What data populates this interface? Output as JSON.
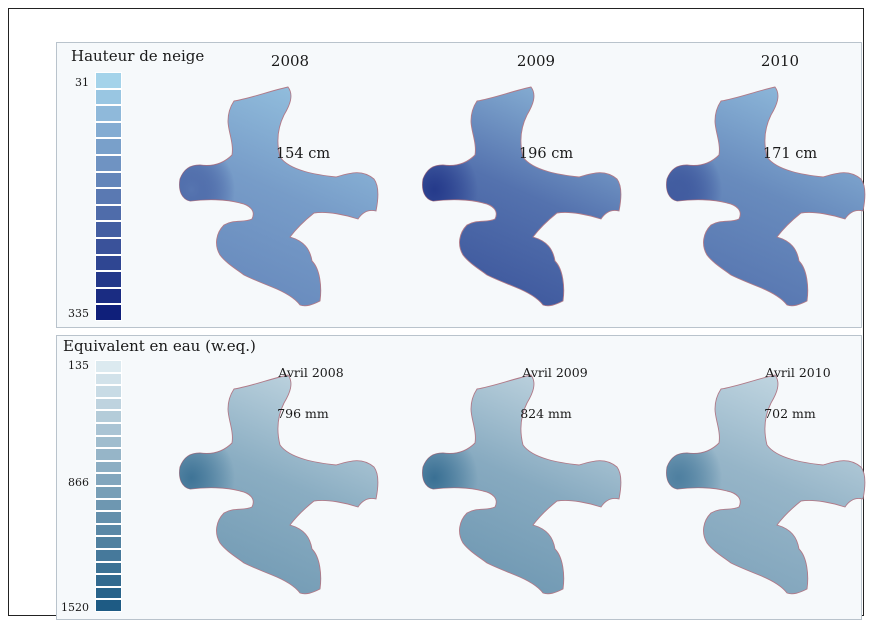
{
  "snow_depth": {
    "title": "Hauteur de neige",
    "legend": {
      "min_label": "31",
      "max_label": "335",
      "min_value": 31,
      "max_value": 335,
      "swatch_count": 15,
      "color_low": "#a4d3ea",
      "color_high": "#0f1f7a"
    },
    "maps": [
      {
        "year": "2008",
        "value_label": "154 cm",
        "value": 154
      },
      {
        "year": "2009",
        "value_label": "196 cm",
        "value": 196
      },
      {
        "year": "2010",
        "value_label": "171 cm",
        "value": 171
      }
    ]
  },
  "water_equivalent": {
    "title": "Equivalent en eau (w.eq.)",
    "legend": {
      "min_label": "135",
      "mid_label": "866",
      "max_label": "1520",
      "min_value": 135,
      "mid_value": 866,
      "max_value": 1520,
      "swatch_count": 20,
      "color_low": "#dceaf0",
      "color_high": "#1e5b84"
    },
    "maps": [
      {
        "date": "Avril 2008",
        "value_label": "796 mm",
        "value": 796
      },
      {
        "date": "Avril 2009",
        "value_label": "824 mm",
        "value": 824
      },
      {
        "date": "Avril 2010",
        "value_label": "702 mm",
        "value": 702
      }
    ]
  },
  "colors": {
    "outline": "#b07a88",
    "frame": "#222222",
    "panel_border": "#b9c3cc"
  }
}
